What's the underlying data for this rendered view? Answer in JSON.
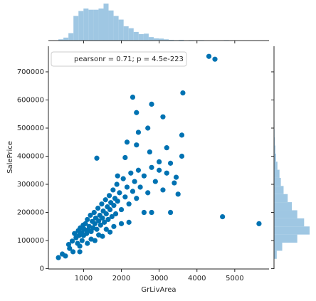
{
  "chart_data": {
    "type": "jointplot",
    "x_label": "GrLivArea",
    "y_label": "SalePrice",
    "legend_text": "pearsonr = 0.71; p = 4.5e-223",
    "legend_position": "upper left",
    "color": "#0072b2",
    "hist_color": "#9fc7e3",
    "xlim": [
      69,
      5907
    ],
    "ylim": [
      -1100,
      791000
    ],
    "xticks": [
      1000,
      2000,
      3000,
      4000,
      5000
    ],
    "yticks": [
      0,
      100000,
      200000,
      300000,
      400000,
      500000,
      600000,
      700000
    ],
    "x": [
      334,
      438,
      520,
      605,
      630,
      700,
      720,
      760,
      800,
      840,
      860,
      880,
      900,
      912,
      950,
      960,
      990,
      1000,
      1020,
      1050,
      1080,
      1100,
      1120,
      1150,
      1180,
      1200,
      1230,
      1250,
      1280,
      1300,
      1320,
      1350,
      1380,
      1400,
      1430,
      1450,
      1480,
      1500,
      1520,
      1550,
      1580,
      1600,
      1630,
      1650,
      1680,
      1700,
      1720,
      1750,
      1780,
      1800,
      1830,
      1850,
      1880,
      1900,
      1950,
      2000,
      2050,
      2100,
      2150,
      2200,
      2250,
      2300,
      2350,
      2400,
      2450,
      2500,
      2600,
      2700,
      2800,
      2900,
      3000,
      3100,
      3200,
      3400,
      3500,
      3600,
      1800,
      2200,
      2600,
      2000,
      1400,
      1700,
      900,
      1100,
      1300,
      1500,
      2100,
      2400,
      2800,
      3200,
      3300,
      3600,
      3627,
      2300,
      2400,
      2800,
      4316,
      4476,
      4676,
      5642,
      1200,
      1600,
      1900,
      2150,
      2450,
      2700,
      3100,
      3450,
      1350,
      2750,
      3000,
      3300
    ],
    "y": [
      39300,
      52000,
      45000,
      86000,
      72000,
      98000,
      60000,
      125000,
      110000,
      90000,
      135000,
      118000,
      80000,
      145000,
      128000,
      100000,
      155000,
      118000,
      140000,
      160000,
      125000,
      175000,
      138000,
      150000,
      190000,
      132000,
      168000,
      145000,
      200000,
      160000,
      180000,
      140000,
      215000,
      170000,
      190000,
      155000,
      230000,
      180000,
      205000,
      165000,
      245000,
      195000,
      220000,
      175000,
      260000,
      210000,
      235000,
      185000,
      280000,
      225000,
      250000,
      195000,
      300000,
      240000,
      270000,
      210000,
      320000,
      255000,
      290000,
      230000,
      340000,
      275000,
      310000,
      250000,
      350000,
      290000,
      330000,
      270000,
      360000,
      310000,
      350000,
      280000,
      340000,
      305000,
      265000,
      400000,
      150000,
      165000,
      200000,
      160000,
      120000,
      130000,
      60000,
      90000,
      100000,
      115000,
      395000,
      440000,
      200000,
      430000,
      375000,
      475000,
      625000,
      610000,
      555000,
      585000,
      755000,
      745000,
      184750,
      160000,
      105000,
      140000,
      330000,
      450000,
      485000,
      500000,
      540000,
      325000,
      393000,
      415000,
      380000,
      200000
    ],
    "x_hist": {
      "bins": [
        334,
        466.7,
        599.4,
        732.1,
        864.8,
        997.5,
        1130.2,
        1262.9,
        1395.6,
        1528.3,
        1661,
        1793.7,
        1926.4,
        2059.1,
        2191.8,
        2324.5,
        2457.2,
        2589.9,
        2722.6,
        2855.3,
        2988,
        3120.7,
        3253.4,
        3386.1,
        3518.8,
        3651.5,
        3784.2,
        3916.9,
        4049.6,
        4182.3,
        4315,
        4447.7,
        4580.4,
        4713.1,
        4845.8,
        4978.5,
        5111.2,
        5243.9,
        5376.6,
        5509.3,
        5642
      ],
      "counts": [
        5,
        12,
        30,
        100,
        120,
        130,
        125,
        125,
        130,
        150,
        122,
        100,
        85,
        58,
        50,
        35,
        26,
        28,
        14,
        9,
        8,
        5,
        3,
        2,
        3,
        0,
        2,
        0,
        2,
        0,
        0,
        0,
        0,
        2,
        0,
        0,
        0,
        0,
        0,
        1
      ]
    },
    "y_hist": {
      "bins": [
        34900,
        63704,
        92508,
        121312,
        150116,
        178920,
        207724,
        236528,
        265332,
        294136,
        322940,
        351744,
        380548,
        409352,
        438156,
        466960,
        495764,
        524568,
        553372,
        582176,
        610980,
        639784,
        668588,
        697392,
        726196,
        755000
      ],
      "counts": [
        20,
        60,
        170,
        260,
        220,
        170,
        130,
        100,
        70,
        50,
        40,
        25,
        15,
        10,
        6,
        4,
        3,
        2,
        1,
        1,
        0,
        1,
        0,
        0,
        2
      ]
    }
  }
}
